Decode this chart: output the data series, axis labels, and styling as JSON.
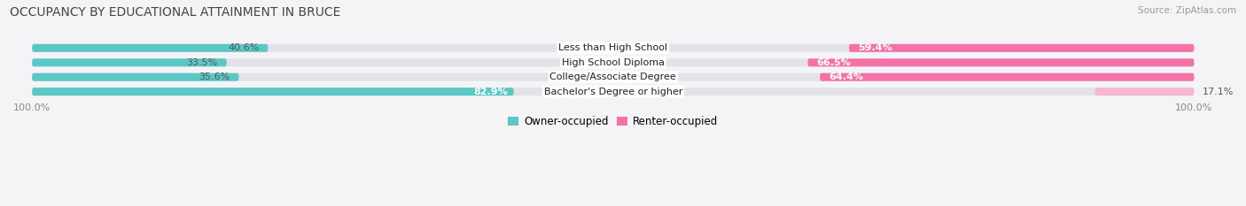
{
  "title": "OCCUPANCY BY EDUCATIONAL ATTAINMENT IN BRUCE",
  "source": "Source: ZipAtlas.com",
  "categories": [
    "Less than High School",
    "High School Diploma",
    "College/Associate Degree",
    "Bachelor's Degree or higher"
  ],
  "owner_pct": [
    40.6,
    33.5,
    35.6,
    82.9
  ],
  "renter_pct": [
    59.4,
    66.5,
    64.4,
    17.1
  ],
  "owner_color": "#5BC8C5",
  "renter_color": "#F472A8",
  "renter_light_color": "#F5B8D0",
  "bar_bg_color": "#E2E2E8",
  "background_color": "#F4F4F7",
  "title_fontsize": 10,
  "bar_height": 0.55,
  "xlim": [
    -100,
    100
  ],
  "ylabel_fontsize": 8,
  "tick_fontsize": 8
}
